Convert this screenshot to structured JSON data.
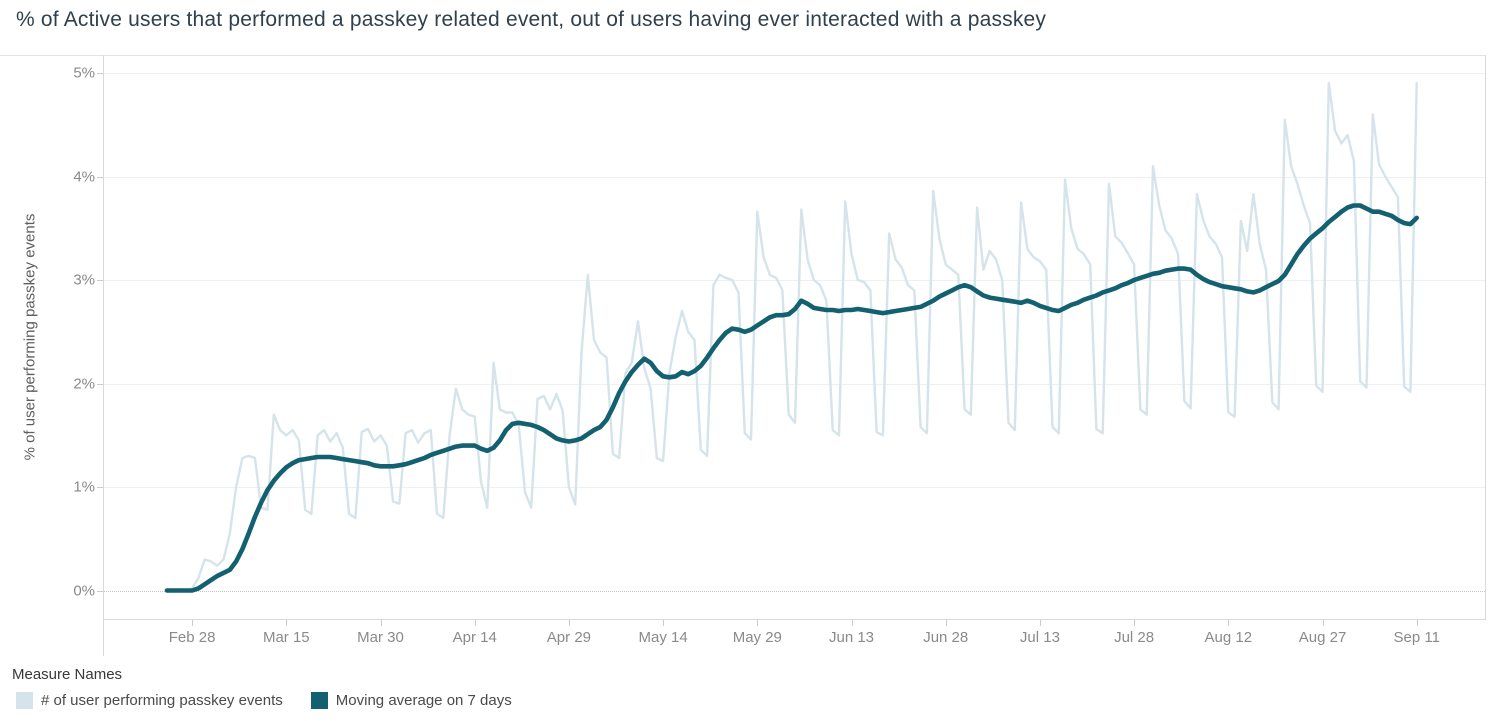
{
  "header": {
    "note": "Tableau-style line chart screenshot"
  },
  "colors": {
    "title_text": "#31404e",
    "axis_text": "#8a8a8a",
    "axis_title_text": "#5e5e5e",
    "gridline": "#efefef",
    "zero_line": "#c6c6c6",
    "pane_border": "#d9d9d9",
    "raw_series": "#d5e4ea",
    "moving_avg_series": "#136170"
  },
  "legend": {
    "title": "Measure Names"
  },
  "chart_data": {
    "type": "line",
    "title": "% of Active users that performed a passkey related event, out of users having ever interacted with a passkey",
    "xlabel": "",
    "ylabel": "% of user performing passkey events",
    "ylim": [
      0,
      5
    ],
    "grid": "horizontal",
    "legend_position": "bottom-left",
    "x_unit": "day index, day 0 = Feb 24",
    "y_ticks": [
      {
        "label": "0%",
        "value": 0
      },
      {
        "label": "1%",
        "value": 1
      },
      {
        "label": "2%",
        "value": 2
      },
      {
        "label": "3%",
        "value": 3
      },
      {
        "label": "4%",
        "value": 4
      },
      {
        "label": "5%",
        "value": 5
      }
    ],
    "x_ticks": [
      {
        "label": "Feb 28",
        "day": 4
      },
      {
        "label": "Mar 15",
        "day": 19
      },
      {
        "label": "Mar 30",
        "day": 34
      },
      {
        "label": "Apr 14",
        "day": 49
      },
      {
        "label": "Apr 29",
        "day": 64
      },
      {
        "label": "May 14",
        "day": 79
      },
      {
        "label": "May 29",
        "day": 94
      },
      {
        "label": "Jun 13",
        "day": 109
      },
      {
        "label": "Jun 28",
        "day": 124
      },
      {
        "label": "Jul 13",
        "day": 139
      },
      {
        "label": "Jul 28",
        "day": 154
      },
      {
        "label": "Aug 12",
        "day": 169
      },
      {
        "label": "Aug 27",
        "day": 184
      },
      {
        "label": "Sep 11",
        "day": 199
      }
    ],
    "series": [
      {
        "name": "# of user performing passkey events",
        "color": "#d5e4ea",
        "stroke_width": 2.4,
        "values": [
          0,
          0,
          0,
          0,
          0.02,
          0.12,
          0.3,
          0.28,
          0.24,
          0.3,
          0.55,
          1.0,
          1.28,
          1.3,
          1.28,
          0.8,
          0.78,
          1.7,
          1.55,
          1.5,
          1.55,
          1.45,
          0.78,
          0.74,
          1.5,
          1.55,
          1.44,
          1.52,
          1.38,
          0.74,
          0.7,
          1.53,
          1.56,
          1.44,
          1.5,
          1.4,
          0.86,
          0.84,
          1.52,
          1.55,
          1.43,
          1.52,
          1.55,
          0.74,
          0.7,
          1.5,
          1.95,
          1.75,
          1.7,
          1.68,
          1.05,
          0.8,
          2.2,
          1.75,
          1.72,
          1.72,
          1.6,
          0.95,
          0.8,
          1.85,
          1.88,
          1.75,
          1.9,
          1.74,
          1.0,
          0.83,
          2.3,
          3.05,
          2.42,
          2.3,
          2.25,
          1.32,
          1.28,
          2.1,
          2.2,
          2.6,
          2.15,
          1.95,
          1.28,
          1.25,
          2.1,
          2.45,
          2.7,
          2.5,
          2.42,
          1.36,
          1.3,
          2.95,
          3.05,
          3.02,
          3.0,
          2.88,
          1.52,
          1.46,
          3.66,
          3.22,
          3.05,
          3.02,
          2.9,
          1.7,
          1.62,
          3.68,
          3.2,
          3.0,
          2.95,
          2.8,
          1.55,
          1.5,
          3.76,
          3.25,
          3.0,
          2.98,
          2.9,
          1.53,
          1.5,
          3.45,
          3.2,
          3.12,
          2.95,
          2.9,
          1.58,
          1.52,
          3.86,
          3.4,
          3.15,
          3.1,
          3.05,
          1.75,
          1.7,
          3.7,
          3.1,
          3.28,
          3.2,
          3.0,
          1.62,
          1.55,
          3.75,
          3.3,
          3.22,
          3.18,
          3.1,
          1.58,
          1.52,
          3.97,
          3.5,
          3.3,
          3.25,
          3.15,
          1.56,
          1.52,
          3.93,
          3.42,
          3.36,
          3.26,
          3.15,
          1.75,
          1.7,
          4.1,
          3.72,
          3.48,
          3.4,
          3.25,
          1.83,
          1.76,
          3.83,
          3.58,
          3.42,
          3.35,
          3.22,
          1.72,
          1.68,
          3.57,
          3.28,
          3.83,
          3.35,
          3.1,
          1.82,
          1.75,
          4.55,
          4.1,
          3.93,
          3.72,
          3.55,
          1.98,
          1.92,
          4.9,
          4.44,
          4.32,
          4.4,
          4.15,
          2.02,
          1.96,
          4.6,
          4.12,
          4.0,
          3.9,
          3.8,
          1.97,
          1.92,
          4.9
        ]
      },
      {
        "name": "Moving average on 7 days",
        "color": "#136170",
        "stroke_width": 4.6,
        "values": [
          0,
          0,
          0,
          0,
          0,
          0.02,
          0.06,
          0.1,
          0.14,
          0.17,
          0.2,
          0.28,
          0.4,
          0.55,
          0.71,
          0.85,
          0.97,
          1.06,
          1.13,
          1.19,
          1.23,
          1.26,
          1.27,
          1.28,
          1.29,
          1.29,
          1.29,
          1.28,
          1.27,
          1.26,
          1.25,
          1.24,
          1.23,
          1.21,
          1.2,
          1.2,
          1.2,
          1.21,
          1.22,
          1.24,
          1.26,
          1.28,
          1.31,
          1.33,
          1.35,
          1.37,
          1.39,
          1.4,
          1.4,
          1.4,
          1.37,
          1.35,
          1.38,
          1.45,
          1.55,
          1.61,
          1.62,
          1.61,
          1.6,
          1.58,
          1.55,
          1.51,
          1.47,
          1.45,
          1.44,
          1.45,
          1.47,
          1.51,
          1.55,
          1.58,
          1.65,
          1.77,
          1.91,
          2.02,
          2.11,
          2.18,
          2.24,
          2.2,
          2.12,
          2.07,
          2.06,
          2.07,
          2.11,
          2.09,
          2.12,
          2.17,
          2.25,
          2.34,
          2.42,
          2.49,
          2.53,
          2.52,
          2.5,
          2.52,
          2.56,
          2.6,
          2.64,
          2.66,
          2.66,
          2.67,
          2.72,
          2.8,
          2.77,
          2.73,
          2.72,
          2.71,
          2.71,
          2.7,
          2.71,
          2.71,
          2.72,
          2.71,
          2.7,
          2.69,
          2.68,
          2.69,
          2.7,
          2.71,
          2.72,
          2.73,
          2.74,
          2.77,
          2.8,
          2.84,
          2.87,
          2.9,
          2.93,
          2.95,
          2.93,
          2.89,
          2.85,
          2.83,
          2.82,
          2.81,
          2.8,
          2.79,
          2.78,
          2.8,
          2.78,
          2.75,
          2.73,
          2.71,
          2.7,
          2.73,
          2.76,
          2.78,
          2.81,
          2.83,
          2.85,
          2.88,
          2.9,
          2.92,
          2.95,
          2.97,
          3.0,
          3.02,
          3.04,
          3.06,
          3.07,
          3.09,
          3.1,
          3.11,
          3.11,
          3.1,
          3.05,
          3.01,
          2.98,
          2.96,
          2.94,
          2.93,
          2.92,
          2.91,
          2.89,
          2.88,
          2.9,
          2.93,
          2.96,
          2.99,
          3.05,
          3.15,
          3.25,
          3.33,
          3.4,
          3.45,
          3.5,
          3.56,
          3.61,
          3.66,
          3.7,
          3.72,
          3.72,
          3.69,
          3.66,
          3.66,
          3.64,
          3.62,
          3.58,
          3.55,
          3.54,
          3.6
        ]
      }
    ]
  }
}
